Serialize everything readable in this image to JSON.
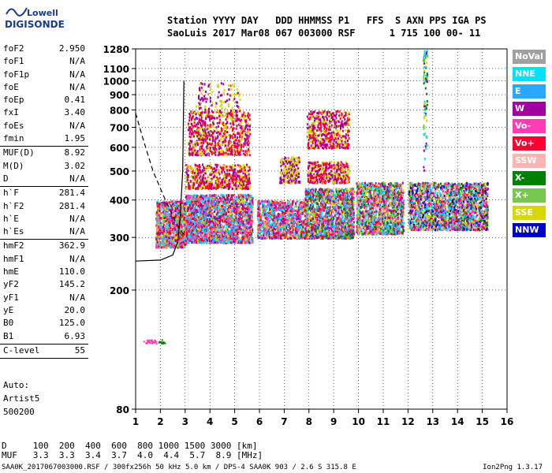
{
  "logo": {
    "top": "Lowell",
    "bottom": "DIGISONDE"
  },
  "header": {
    "line1": "Station YYYY DAY   DDD HHMMSS P1   FFS  S AXN PPS IGA PS",
    "line2": "SaoLuis 2017 Mar08 067 003000 RSF      1 715 100 00- 11"
  },
  "params": [
    [
      {
        "name": "foF2",
        "value": "2.950"
      },
      {
        "name": "foF1",
        "value": "N/A"
      },
      {
        "name": "foF1p",
        "value": "N/A"
      },
      {
        "name": "foE",
        "value": "N/A"
      },
      {
        "name": "foEp",
        "value": "0.41"
      },
      {
        "name": "fxI",
        "value": "3.40"
      },
      {
        "name": "foEs",
        "value": "N/A"
      },
      {
        "name": "fmin",
        "value": "1.95"
      }
    ],
    [
      {
        "name": "MUF(D)",
        "value": "8.92"
      },
      {
        "name": "M(D)",
        "value": "3.02"
      },
      {
        "name": "D",
        "value": "N/A"
      }
    ],
    [
      {
        "name": "h`F",
        "value": "281.4"
      },
      {
        "name": "h`F2",
        "value": "281.4"
      },
      {
        "name": "h`E",
        "value": "N/A"
      },
      {
        "name": "h`Es",
        "value": "N/A"
      }
    ],
    [
      {
        "name": "hmF2",
        "value": "362.9"
      },
      {
        "name": "hmF1",
        "value": "N/A"
      },
      {
        "name": "hmE",
        "value": "110.0"
      },
      {
        "name": "yF2",
        "value": "145.2"
      },
      {
        "name": "yF1",
        "value": "N/A"
      },
      {
        "name": "yE",
        "value": "20.0"
      },
      {
        "name": "B0",
        "value": "125.0"
      },
      {
        "name": "B1",
        "value": "6.93"
      }
    ],
    [
      {
        "name": "C-level",
        "value": "55"
      }
    ]
  ],
  "auto": {
    "line1": "Auto:",
    "line2": "Artist5",
    "line3": "500200"
  },
  "legend": [
    {
      "label": "NoVal",
      "color": "#a0a0a0"
    },
    {
      "label": "NNE",
      "color": "#00e0ff"
    },
    {
      "label": "E",
      "color": "#2aa8ff"
    },
    {
      "label": "W",
      "color": "#a000a0"
    },
    {
      "label": "Vo-",
      "color": "#ff3cb4"
    },
    {
      "label": "Vo+",
      "color": "#ff0030"
    },
    {
      "label": "SSW",
      "color": "#ffb4b4"
    },
    {
      "label": "X-",
      "color": "#008000"
    },
    {
      "label": "X+",
      "color": "#78c850"
    },
    {
      "label": "SSE",
      "color": "#d8d800"
    },
    {
      "label": "NNW",
      "color": "#0000c8"
    }
  ],
  "bottom_table": {
    "row1": "D     100  200  400  600  800 1000 1500 3000 [km]",
    "row2": "MUF   3.3  3.3  3.4  3.7  4.0  4.4  5.7  8.9 [MHz]"
  },
  "footer": "SAA0K_2017067003000.RSF / 300fx256h 50 kHz 5.0 km / DPS-4 SAA0K 903 / 2.6 S 315.8 E",
  "version": "Ion2Png 1.3.17",
  "chart_data": {
    "type": "scatter",
    "x_ticks": [
      "1",
      "2",
      "3",
      "4",
      "5",
      "6",
      "7",
      "8",
      "9",
      "10",
      "11",
      "12",
      "13",
      "14",
      "15",
      "16"
    ],
    "y_ticks": [
      "80",
      "200",
      "300",
      "400",
      "500",
      "600",
      "700",
      "800",
      "900",
      "1000",
      "1100",
      "1280"
    ],
    "xlim": [
      1,
      16
    ],
    "y_scale": "log",
    "ylim": [
      80,
      1280
    ],
    "grid": "dotted",
    "ordinary_trace": {
      "x": [
        1.0,
        2.0,
        2.5,
        2.7,
        2.8,
        2.9,
        2.95
      ],
      "y": [
        250,
        252,
        262,
        290,
        350,
        500,
        1000
      ]
    },
    "muf_curve": {
      "x": [
        1.0,
        1.3,
        1.7,
        2.2,
        2.6,
        3.0
      ],
      "y": [
        780,
        640,
        500,
        400,
        340,
        300
      ]
    }
  }
}
